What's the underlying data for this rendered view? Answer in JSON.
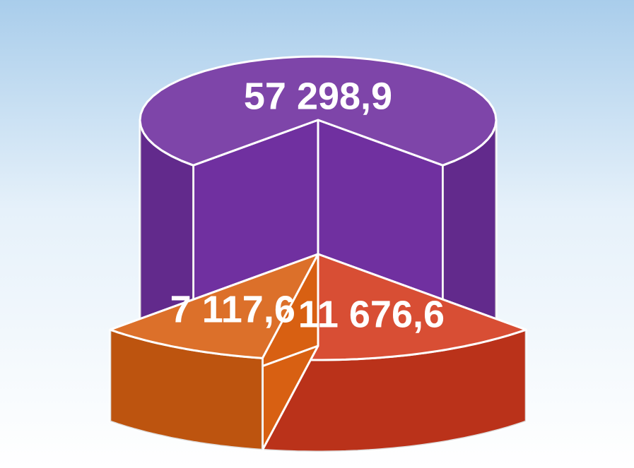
{
  "chart_data": {
    "type": "pie",
    "values": [
      57298.9,
      11676.6,
      7117.6
    ],
    "value_labels": [
      "57 298,9",
      "11 676,6",
      "7 117,6"
    ],
    "colors": [
      "#7030a0",
      "#d43a1e",
      "#d86012"
    ]
  }
}
